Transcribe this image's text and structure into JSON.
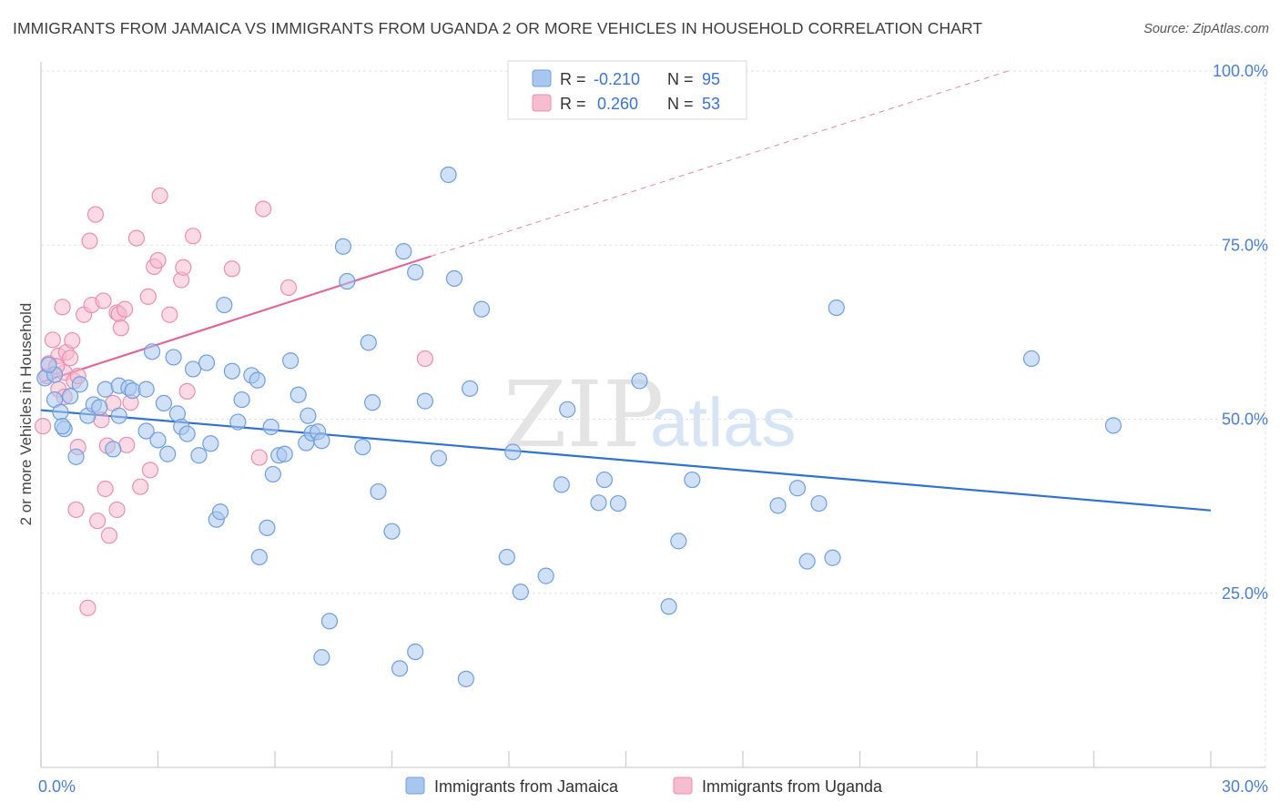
{
  "title": "IMMIGRANTS FROM JAMAICA VS IMMIGRANTS FROM UGANDA 2 OR MORE VEHICLES IN HOUSEHOLD CORRELATION CHART",
  "source": "Source: ZipAtlas.com",
  "watermark": {
    "zip": "ZIP",
    "atlas": "atlas"
  },
  "colors": {
    "jamaica_fill": "#a9c6ef",
    "jamaica_stroke": "#6f9fde",
    "jamaica_line": "#2f72d0",
    "uganda_fill": "#f7bcd0",
    "uganda_stroke": "#ea8fb0",
    "uganda_line": "#e0679a",
    "grid": "#e3e3e3",
    "tick_text": "#4a7fd0"
  },
  "legend": {
    "rows": [
      {
        "r_label": "R =",
        "r_value": "-0.210",
        "n_label": "N =",
        "n_value": "95"
      },
      {
        "r_label": "R =",
        "r_value": "0.260",
        "n_label": "N =",
        "n_value": "53"
      }
    ]
  },
  "bottom_legend": [
    "Immigrants from Jamaica",
    "Immigrants from Uganda"
  ],
  "chart_data": {
    "type": "scatter",
    "xlabel": "",
    "ylabel": "2 or more Vehicles in Household",
    "xlim": [
      0,
      30
    ],
    "ylim": [
      0,
      100
    ],
    "x_tick_labels": [
      "0.0%",
      "30.0%"
    ],
    "y_tick_labels": [
      "25.0%",
      "50.0%",
      "75.0%",
      "100.0%"
    ],
    "y_ticks": [
      25,
      50,
      75,
      100
    ],
    "grid": true,
    "legend_position": "top-center",
    "series": [
      {
        "name": "Immigrants from Jamaica",
        "R": -0.21,
        "N": 95,
        "trend": {
          "x": [
            0,
            30
          ],
          "y": [
            51.3,
            36.9
          ]
        },
        "points": [
          [
            0.1,
            55.9
          ],
          [
            0.35,
            56.4
          ],
          [
            0.35,
            52.8
          ],
          [
            0.5,
            51.0
          ],
          [
            0.6,
            48.6
          ],
          [
            0.75,
            53.3
          ],
          [
            0.9,
            44.6
          ],
          [
            1.2,
            50.5
          ],
          [
            1.35,
            52.1
          ],
          [
            1.65,
            54.3
          ],
          [
            1.85,
            45.7
          ],
          [
            2.0,
            54.8
          ],
          [
            2.25,
            54.5
          ],
          [
            2.35,
            54.1
          ],
          [
            2.7,
            54.3
          ],
          [
            2.7,
            48.3
          ],
          [
            2.85,
            59.7
          ],
          [
            3.15,
            52.3
          ],
          [
            3.25,
            45.0
          ],
          [
            3.4,
            58.9
          ],
          [
            3.5,
            50.8
          ],
          [
            3.6,
            48.9
          ],
          [
            3.75,
            47.9
          ],
          [
            3.9,
            57.2
          ],
          [
            4.05,
            44.8
          ],
          [
            4.25,
            58.1
          ],
          [
            4.35,
            46.5
          ],
          [
            4.5,
            35.6
          ],
          [
            4.6,
            36.7
          ],
          [
            4.7,
            66.4
          ],
          [
            4.9,
            56.9
          ],
          [
            5.05,
            49.6
          ],
          [
            5.15,
            52.8
          ],
          [
            5.4,
            56.3
          ],
          [
            5.55,
            55.6
          ],
          [
            5.8,
            34.4
          ],
          [
            5.6,
            30.2
          ],
          [
            5.9,
            48.9
          ],
          [
            5.95,
            42.1
          ],
          [
            6.1,
            44.8
          ],
          [
            6.25,
            45.0
          ],
          [
            6.4,
            58.4
          ],
          [
            6.6,
            53.5
          ],
          [
            6.8,
            46.6
          ],
          [
            6.85,
            50.5
          ],
          [
            6.95,
            48.0
          ],
          [
            7.1,
            48.2
          ],
          [
            7.2,
            46.9
          ],
          [
            7.4,
            21.0
          ],
          [
            7.2,
            15.8
          ],
          [
            7.75,
            74.8
          ],
          [
            7.85,
            69.8
          ],
          [
            8.25,
            46.0
          ],
          [
            8.4,
            61.0
          ],
          [
            8.5,
            52.4
          ],
          [
            8.65,
            39.6
          ],
          [
            9.0,
            33.9
          ],
          [
            9.3,
            74.1
          ],
          [
            9.6,
            71.1
          ],
          [
            9.6,
            16.6
          ],
          [
            9.2,
            14.2
          ],
          [
            9.85,
            52.6
          ],
          [
            10.2,
            44.4
          ],
          [
            10.45,
            85.1
          ],
          [
            10.6,
            70.2
          ],
          [
            10.9,
            12.7
          ],
          [
            11.0,
            54.4
          ],
          [
            11.3,
            65.8
          ],
          [
            11.95,
            30.2
          ],
          [
            12.1,
            45.3
          ],
          [
            12.3,
            25.2
          ],
          [
            12.95,
            27.5
          ],
          [
            13.35,
            40.6
          ],
          [
            13.5,
            51.4
          ],
          [
            14.3,
            38.0
          ],
          [
            14.45,
            41.3
          ],
          [
            14.8,
            37.9
          ],
          [
            15.35,
            55.5
          ],
          [
            16.1,
            23.1
          ],
          [
            16.35,
            32.5
          ],
          [
            16.7,
            41.3
          ],
          [
            18.9,
            37.6
          ],
          [
            19.4,
            40.1
          ],
          [
            19.65,
            29.6
          ],
          [
            19.95,
            37.9
          ],
          [
            20.3,
            30.1
          ],
          [
            20.4,
            66.0
          ],
          [
            25.4,
            58.7
          ],
          [
            27.5,
            49.1
          ],
          [
            0.2,
            57.8
          ],
          [
            1.0,
            55.0
          ],
          [
            2.0,
            50.5
          ],
          [
            3.0,
            47.0
          ],
          [
            0.55,
            49.0
          ],
          [
            1.5,
            51.7
          ]
        ]
      },
      {
        "name": "Immigrants from Uganda",
        "R": 0.26,
        "N": 53,
        "trend": {
          "x": [
            0,
            10
          ],
          "y": [
            55.3,
            73.4
          ]
        },
        "trend_dashed": {
          "x": [
            10,
            24.8
          ],
          "y": [
            73.4,
            100
          ]
        },
        "points": [
          [
            0.05,
            49.0
          ],
          [
            0.15,
            56.2
          ],
          [
            0.2,
            58.0
          ],
          [
            0.3,
            61.4
          ],
          [
            0.45,
            59.1
          ],
          [
            0.45,
            54.3
          ],
          [
            0.55,
            66.1
          ],
          [
            0.6,
            56.7
          ],
          [
            0.65,
            59.6
          ],
          [
            0.6,
            53.2
          ],
          [
            0.75,
            58.8
          ],
          [
            0.8,
            61.3
          ],
          [
            0.85,
            55.5
          ],
          [
            0.95,
            56.2
          ],
          [
            0.95,
            46.0
          ],
          [
            0.9,
            37.0
          ],
          [
            1.1,
            65.0
          ],
          [
            1.2,
            22.9
          ],
          [
            1.25,
            75.6
          ],
          [
            1.3,
            66.4
          ],
          [
            1.4,
            79.4
          ],
          [
            1.45,
            35.4
          ],
          [
            1.55,
            49.9
          ],
          [
            1.6,
            67.0
          ],
          [
            1.65,
            40.0
          ],
          [
            1.7,
            46.2
          ],
          [
            1.75,
            33.3
          ],
          [
            1.85,
            52.3
          ],
          [
            1.95,
            37.0
          ],
          [
            1.95,
            65.3
          ],
          [
            2.0,
            65.1
          ],
          [
            2.05,
            63.1
          ],
          [
            2.15,
            65.8
          ],
          [
            2.2,
            46.3
          ],
          [
            2.3,
            52.4
          ],
          [
            2.45,
            76.0
          ],
          [
            2.55,
            40.3
          ],
          [
            2.75,
            67.6
          ],
          [
            2.8,
            42.7
          ],
          [
            2.9,
            71.9
          ],
          [
            3.0,
            72.8
          ],
          [
            3.05,
            82.1
          ],
          [
            3.3,
            65.0
          ],
          [
            3.6,
            70.0
          ],
          [
            3.65,
            71.8
          ],
          [
            3.75,
            54.0
          ],
          [
            3.9,
            76.3
          ],
          [
            4.9,
            71.6
          ],
          [
            5.6,
            44.5
          ],
          [
            5.7,
            80.2
          ],
          [
            6.35,
            68.9
          ],
          [
            9.85,
            58.7
          ],
          [
            0.4,
            57.6
          ]
        ]
      }
    ]
  }
}
